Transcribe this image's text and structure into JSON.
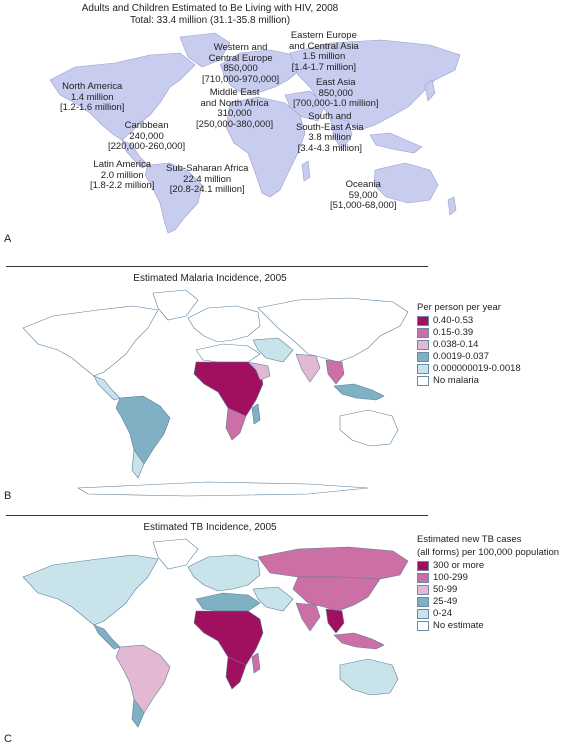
{
  "panel_a": {
    "letter": "A",
    "title": "Adults and Children Estimated to Be Living with HIV, 2008",
    "subtitle": "Total: 33.4 million (31.1-35.8 million)",
    "regions": [
      {
        "name": "North America",
        "value": "1.4 million",
        "range": "[1.2-1.6 million]"
      },
      {
        "name": "Caribbean",
        "value": "240,000",
        "range": "[220,000-260,000]"
      },
      {
        "name": "Latin America",
        "value": "2.0 million",
        "range": "[1.8-2.2 million]"
      },
      {
        "name": "Western and Central Europe",
        "value": "850,000",
        "range": "[710,000-970,000]"
      },
      {
        "name": "Middle East and North Africa",
        "value": "310,000",
        "range": "[250,000-380,000]"
      },
      {
        "name": "Sub-Saharan Africa",
        "value": "22.4 million",
        "range": "[20.8-24.1 million]"
      },
      {
        "name": "Eastern Europe and Central Asia",
        "value": "1.5 million",
        "range": "[1.4-1.7 million]"
      },
      {
        "name": "East Asia",
        "value": "850,000",
        "range": "[700,000-1.0 million]"
      },
      {
        "name": "South and South-East Asia",
        "value": "3.8 million",
        "range": "[3.4-4.3 million]"
      },
      {
        "name": "Oceania",
        "value": "59,000",
        "range": "[51,000-68,000]"
      }
    ],
    "label_lines": {
      "western_1": "Western and",
      "western_2": "Central Europe",
      "mideast_1": "Middle East",
      "mideast_2": "and North Africa",
      "eastern_1": "Eastern Europe",
      "eastern_2": "and Central Asia",
      "south_1": "South and",
      "south_2": "South-East Asia"
    }
  },
  "panel_b": {
    "letter": "B",
    "title": "Estimated Malaria Incidence, 2005",
    "legend_title": "Per person per year",
    "legend": [
      {
        "label": "0.40-0.53",
        "color": "#a0105e"
      },
      {
        "label": "0.15-0.39",
        "color": "#cc6fa4"
      },
      {
        "label": "0.038-0.14",
        "color": "#e3b8d2"
      },
      {
        "label": "0.0019-0.037",
        "color": "#7fb0c4"
      },
      {
        "label": "0.000000019-0.0018",
        "color": "#c9e3ea"
      },
      {
        "label": "No malaria",
        "color": "#ffffff"
      }
    ]
  },
  "panel_c": {
    "letter": "C",
    "title": "Estimated TB Incidence, 2005",
    "legend_title_1": "Estimated new TB cases",
    "legend_title_2": "(all forms) per 100,000 population",
    "legend": [
      {
        "label": "300 or more",
        "color": "#a0105e"
      },
      {
        "label": "100-299",
        "color": "#cc6fa4"
      },
      {
        "label": "50-99",
        "color": "#e3b8d2"
      },
      {
        "label": "25-49",
        "color": "#7fb0c4"
      },
      {
        "label": "0-24",
        "color": "#c9e3ea"
      },
      {
        "label": "No estimate",
        "color": "#ffffff"
      }
    ]
  },
  "colors": {
    "land_hiv": "#c8ccee",
    "border": "#5c7f9c"
  }
}
